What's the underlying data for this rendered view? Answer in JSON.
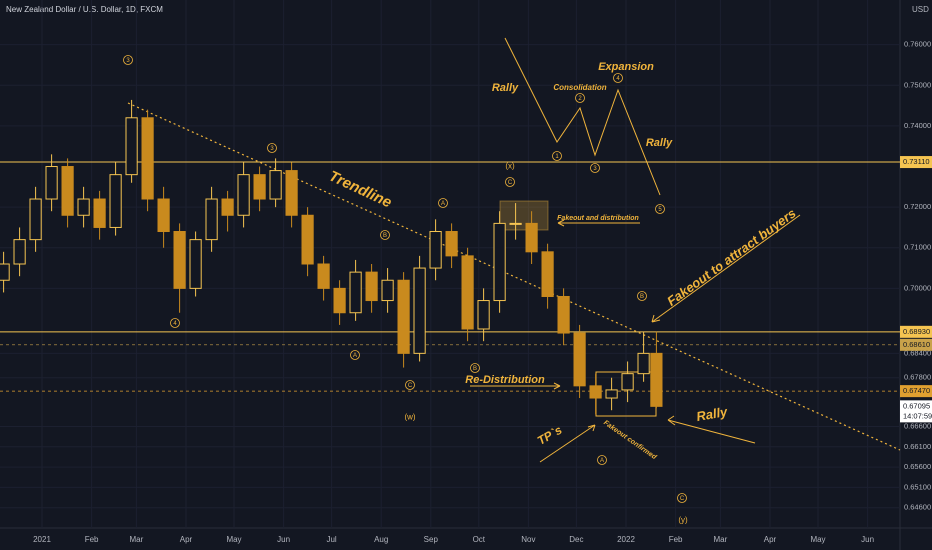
{
  "chart_data": {
    "type": "candlestick",
    "title": "New Zealand Dollar / U.S. Dollar, 1D, FXCM",
    "currency": "USD",
    "x": [
      -24,
      -14,
      -4,
      6,
      16,
      26,
      36,
      46,
      56,
      66,
      76,
      86,
      96,
      106,
      116,
      126,
      136,
      146,
      156,
      166,
      176,
      186,
      196,
      206,
      216,
      226,
      236,
      246,
      256,
      266,
      276,
      286,
      296,
      306,
      316,
      326,
      336,
      346,
      356,
      366,
      376,
      384
    ],
    "open": [
      0.702,
      0.706,
      0.712,
      0.722,
      0.73,
      0.718,
      0.722,
      0.715,
      0.728,
      0.742,
      0.722,
      0.714,
      0.7,
      0.712,
      0.722,
      0.718,
      0.728,
      0.722,
      0.729,
      0.718,
      0.706,
      0.7,
      0.694,
      0.704,
      0.697,
      0.702,
      0.684,
      0.705,
      0.714,
      0.708,
      0.69,
      0.697,
      0.716,
      0.716,
      0.709,
      0.698,
      0.689,
      0.676,
      0.673,
      0.675,
      0.679,
      0.684
    ],
    "high": [
      0.709,
      0.715,
      0.725,
      0.733,
      0.732,
      0.725,
      0.724,
      0.731,
      0.7464,
      0.744,
      0.725,
      0.716,
      0.714,
      0.725,
      0.724,
      0.731,
      0.73,
      0.732,
      0.731,
      0.72,
      0.708,
      0.702,
      0.707,
      0.706,
      0.705,
      0.704,
      0.708,
      0.717,
      0.716,
      0.71,
      0.7,
      0.719,
      0.721,
      0.719,
      0.711,
      0.7,
      0.691,
      0.679,
      0.678,
      0.682,
      0.6893,
      0.6893
    ],
    "low": [
      0.699,
      0.703,
      0.709,
      0.719,
      0.715,
      0.715,
      0.712,
      0.713,
      0.726,
      0.719,
      0.71,
      0.694,
      0.698,
      0.709,
      0.714,
      0.715,
      0.719,
      0.72,
      0.715,
      0.703,
      0.697,
      0.691,
      0.692,
      0.694,
      0.694,
      0.6805,
      0.682,
      0.702,
      0.705,
      0.687,
      0.687,
      0.694,
      0.712,
      0.706,
      0.695,
      0.686,
      0.673,
      0.669,
      0.67,
      0.672,
      0.677,
      0.6705
    ],
    "close": [
      0.706,
      0.712,
      0.722,
      0.73,
      0.718,
      0.722,
      0.715,
      0.728,
      0.742,
      0.722,
      0.714,
      0.7,
      0.712,
      0.722,
      0.718,
      0.728,
      0.722,
      0.729,
      0.718,
      0.706,
      0.7,
      0.694,
      0.704,
      0.697,
      0.702,
      0.684,
      0.705,
      0.714,
      0.708,
      0.69,
      0.697,
      0.716,
      0.716,
      0.709,
      0.698,
      0.689,
      0.676,
      0.673,
      0.675,
      0.679,
      0.684,
      0.67095
    ],
    "up_color": "#f5c451",
    "down_color": "#c98a1e",
    "xlim": [
      -26.25,
      536.25
    ],
    "xticks": [
      {
        "value": 0,
        "label": "2021"
      },
      {
        "value": 31,
        "label": "Feb"
      },
      {
        "value": 59,
        "label": "Mar"
      },
      {
        "value": 90,
        "label": "Apr"
      },
      {
        "value": 120,
        "label": "May"
      },
      {
        "value": 151,
        "label": "Jun"
      },
      {
        "value": 181,
        "label": "Jul"
      },
      {
        "value": 212,
        "label": "Aug"
      },
      {
        "value": 243,
        "label": "Sep"
      },
      {
        "value": 273,
        "label": "Oct"
      },
      {
        "value": 304,
        "label": "Nov"
      },
      {
        "value": 334,
        "label": "Dec"
      },
      {
        "value": 365,
        "label": "2022"
      },
      {
        "value": 396,
        "label": "Feb"
      },
      {
        "value": 424,
        "label": "Mar"
      },
      {
        "value": 455,
        "label": "Apr"
      },
      {
        "value": 485,
        "label": "May"
      },
      {
        "value": 516,
        "label": "Jun"
      }
    ],
    "ylim": [
      0.641,
      0.771
    ],
    "yticks": [
      {
        "value": 0.76,
        "label": "0.76000"
      },
      {
        "value": 0.75,
        "label": "0.75000"
      },
      {
        "value": 0.74,
        "label": "0.74000"
      },
      {
        "value": 0.72,
        "label": "0.72000"
      },
      {
        "value": 0.71,
        "label": "0.71000"
      },
      {
        "value": 0.7,
        "label": "0.70000"
      },
      {
        "value": 0.684,
        "label": "0.68400"
      },
      {
        "value": 0.678,
        "label": "0.67800"
      },
      {
        "value": 0.666,
        "label": "0.66600"
      },
      {
        "value": 0.661,
        "label": "0.66100"
      },
      {
        "value": 0.656,
        "label": "0.65600"
      },
      {
        "value": 0.651,
        "label": "0.65100"
      },
      {
        "value": 0.646,
        "label": "0.64600"
      }
    ],
    "price_lines": [
      {
        "value": 0.7311,
        "label": "0.73110",
        "color": "#f5c451"
      },
      {
        "value": 0.6893,
        "label": "0.68930",
        "color": "#f5c451"
      },
      {
        "value": 0.6861,
        "label": "0.68610",
        "color": "#c9a24a"
      },
      {
        "value": 0.6747,
        "label": "0.67470",
        "color": "#e0a030"
      }
    ],
    "last_price": {
      "value": 0.67095,
      "label": "0.67095",
      "countdown": "14:07:59"
    },
    "annotations": [
      "Trendline",
      "Rally",
      "Consolidation",
      "Expansion",
      "Rally",
      "Fakeout and distribution",
      "Fakeout to attract buyers",
      "Re-Distribution",
      "TP`s",
      "Fakeout confirmed",
      "Rally"
    ],
    "wave_labels": [
      "3",
      "4",
      "3",
      "A",
      "B",
      "C",
      "(w)",
      "A",
      "B",
      "(x)",
      "C",
      "1",
      "2",
      "3",
      "4",
      "5",
      "B",
      "A",
      "C",
      "(y)"
    ]
  }
}
